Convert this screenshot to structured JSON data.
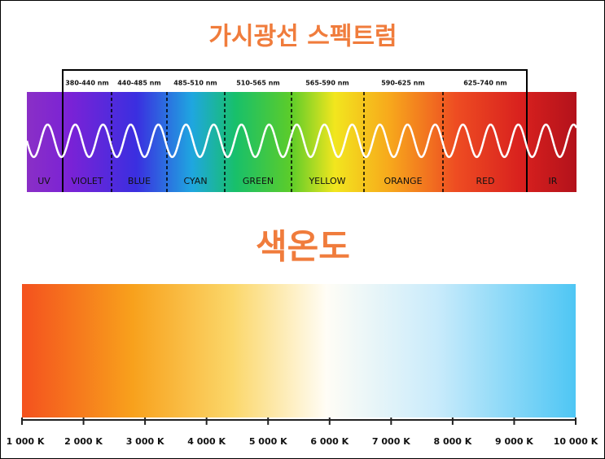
{
  "spectrum": {
    "title": "가시광선 스펙트럼",
    "ranges": [
      "380-440 nm",
      "440-485 nm",
      "485-510 nm",
      "510-565 nm",
      "565-590 nm",
      "590-625 nm",
      "625-740 nm"
    ],
    "bands": [
      "UV",
      "VIOLET",
      "BLUE",
      "CYAN",
      "GREEN",
      "YELLOW",
      "ORANGE",
      "RED",
      "IR"
    ]
  },
  "color_temperature": {
    "title": "색온도",
    "ticks": [
      "1 000 K",
      "2 000 K",
      "3 000 K",
      "4 000 K",
      "5 000 K",
      "6 000 K",
      "7 000 K",
      "8 000 K",
      "9 000 K",
      "10 000 K"
    ]
  }
}
